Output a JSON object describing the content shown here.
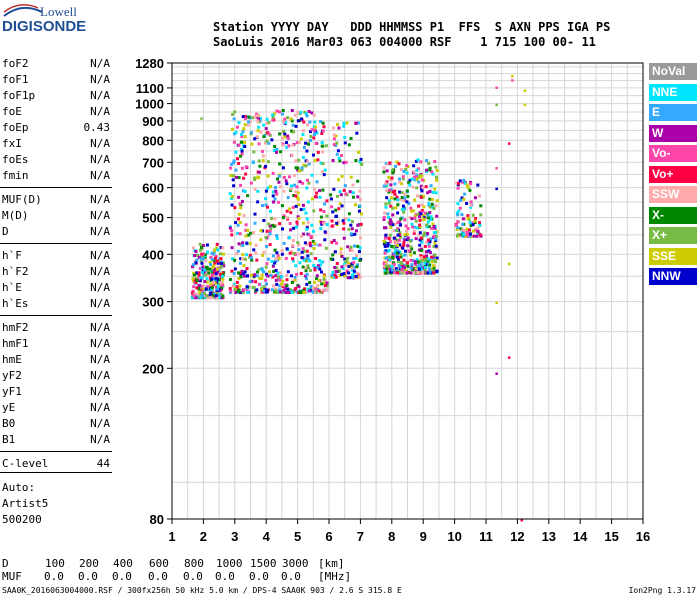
{
  "logo": {
    "line1": "Lowell",
    "line2": "DIGISONDE"
  },
  "header": {
    "row1": "Station YYYY DAY   DDD HHMMSS P1  FFS  S AXN PPS IGA PS",
    "row2": "SaoLuis 2016 Mar03 063 004000 RSF    1 715 100 00- 11"
  },
  "params": [
    {
      "name": "foF2",
      "value": "N/A"
    },
    {
      "name": "foF1",
      "value": "N/A"
    },
    {
      "name": "foF1p",
      "value": "N/A"
    },
    {
      "name": "foE",
      "value": "N/A"
    },
    {
      "name": "foEp",
      "value": "0.43"
    },
    {
      "name": "fxI",
      "value": "N/A"
    },
    {
      "name": "foEs",
      "value": "N/A"
    },
    {
      "name": "fmin",
      "value": "N/A"
    },
    {
      "name": "MUF(D)",
      "value": "N/A"
    },
    {
      "name": "M(D)",
      "value": "N/A"
    },
    {
      "name": "D",
      "value": "N/A"
    },
    {
      "name": "h`F",
      "value": "N/A"
    },
    {
      "name": "h`F2",
      "value": "N/A"
    },
    {
      "name": "h`E",
      "value": "N/A"
    },
    {
      "name": "h`Es",
      "value": "N/A"
    },
    {
      "name": "hmF2",
      "value": "N/A"
    },
    {
      "name": "hmF1",
      "value": "N/A"
    },
    {
      "name": "hmE",
      "value": "N/A"
    },
    {
      "name": "yF2",
      "value": "N/A"
    },
    {
      "name": "yF1",
      "value": "N/A"
    },
    {
      "name": "yE",
      "value": "N/A"
    },
    {
      "name": "B0",
      "value": "N/A"
    },
    {
      "name": "B1",
      "value": "N/A"
    },
    {
      "name": "C-level",
      "value": "44"
    }
  ],
  "autoscaling": {
    "line1": "Auto:",
    "line2": "Artist5",
    "line3": "500200"
  },
  "legend": [
    {
      "label": "NoVal",
      "color": "#9a9a9a"
    },
    {
      "label": "NNE",
      "color": "#00e5ff"
    },
    {
      "label": "E",
      "color": "#33aaff"
    },
    {
      "label": "W",
      "color": "#aa00aa"
    },
    {
      "label": "Vo-",
      "color": "#ff44aa"
    },
    {
      "label": "Vo+",
      "color": "#ff0044"
    },
    {
      "label": "SSW",
      "color": "#ffaaaa"
    },
    {
      "label": "X-",
      "color": "#008800"
    },
    {
      "label": "X+",
      "color": "#77bb44"
    },
    {
      "label": "SSE",
      "color": "#cccc00"
    },
    {
      "label": "NNW",
      "color": "#0000cc"
    }
  ],
  "muf_table": {
    "d_label": "D",
    "d_values": [
      "100",
      "200",
      "400",
      "600",
      "800",
      "1000",
      "1500",
      "3000"
    ],
    "d_unit": "[km]",
    "muf_label": "MUF",
    "muf_values": [
      "0.0",
      "0.0",
      "0.0",
      "0.0",
      "0.0",
      "0.0",
      "0.0",
      "0.0"
    ],
    "muf_unit": "[MHz]"
  },
  "footer": "SAA0K_2016063004000.RSF / 300fx256h 50 kHz 5.0 km / DPS-4 SAA0K 903 / 2.6 S 315.8 E",
  "version": "Ion2Png 1.3.17",
  "chart_data": {
    "type": "scatter",
    "x_ticks": [
      1,
      2,
      3,
      4,
      5,
      6,
      7,
      8,
      9,
      10,
      11,
      12,
      13,
      14,
      15,
      16
    ],
    "y_ticks": [
      80,
      200,
      300,
      400,
      500,
      600,
      700,
      800,
      900,
      1000,
      1100,
      1280
    ],
    "xlim": [
      1,
      16
    ],
    "ylim": [
      80,
      1280
    ],
    "y_scale": "log",
    "grid": true,
    "clusters": [
      {
        "x_range": [
          1.6,
          2.6
        ],
        "y_range": [
          310,
          430
        ],
        "density": 0.55
      },
      {
        "x_range": [
          2.8,
          5.9
        ],
        "y_range": [
          320,
          980
        ],
        "density": 0.4
      },
      {
        "x_range": [
          6.0,
          7.0
        ],
        "y_range": [
          350,
          900
        ],
        "density": 0.3
      },
      {
        "x_range": [
          7.7,
          9.4
        ],
        "y_range": [
          360,
          720
        ],
        "density": 0.55
      },
      {
        "x_range": [
          10.0,
          10.8
        ],
        "y_range": [
          450,
          640
        ],
        "density": 0.2
      }
    ],
    "isolated_points": [
      {
        "x": 11.3,
        "y": 1110
      },
      {
        "x": 11.3,
        "y": 1000
      },
      {
        "x": 11.8,
        "y": 1190
      },
      {
        "x": 11.8,
        "y": 1160
      },
      {
        "x": 12.2,
        "y": 1090
      },
      {
        "x": 12.2,
        "y": 1000
      },
      {
        "x": 11.3,
        "y": 680
      },
      {
        "x": 11.3,
        "y": 600
      },
      {
        "x": 11.3,
        "y": 300
      },
      {
        "x": 11.3,
        "y": 195
      },
      {
        "x": 11.7,
        "y": 790
      },
      {
        "x": 11.7,
        "y": 380
      },
      {
        "x": 11.7,
        "y": 215
      },
      {
        "x": 12.1,
        "y": 80
      },
      {
        "x": 1.9,
        "y": 920
      }
    ]
  }
}
